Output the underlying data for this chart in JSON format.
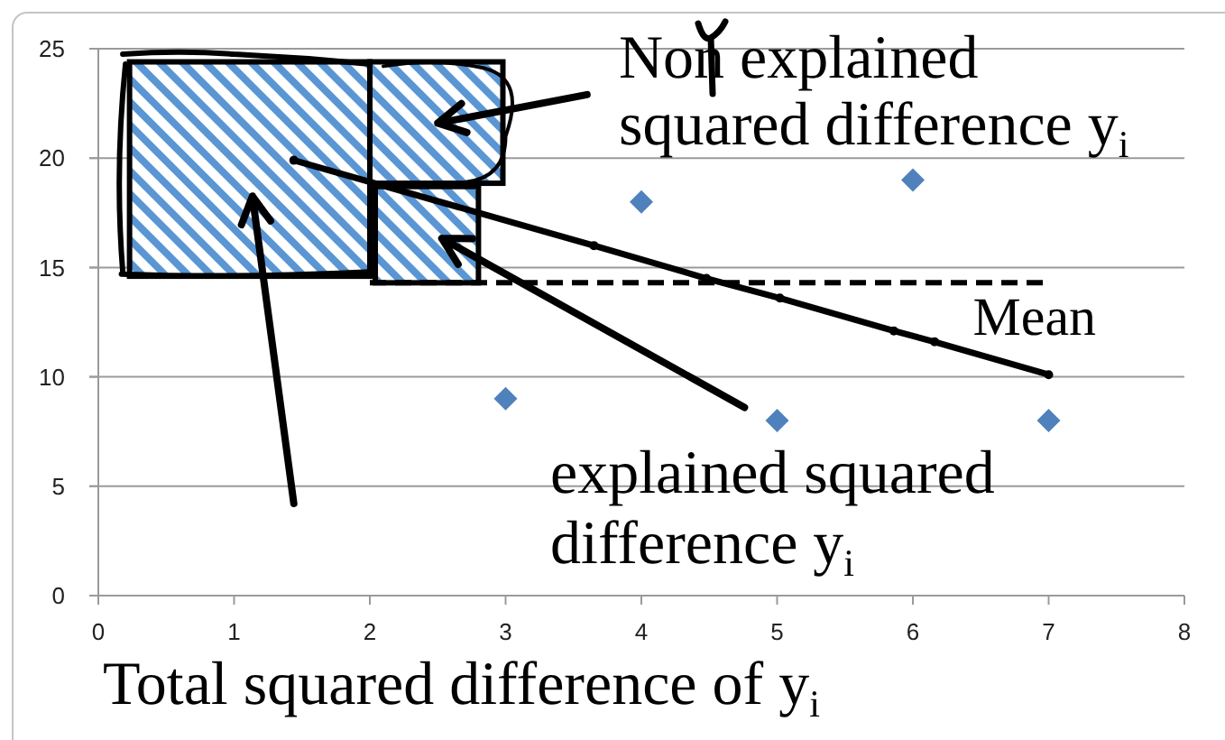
{
  "chart_data": {
    "type": "scatter",
    "series": [
      {
        "color": "#4f81bd",
        "marker": "diamond",
        "x": [
          3,
          4,
          5,
          6,
          7
        ],
        "values": [
          9,
          18,
          8,
          19,
          8
        ]
      },
      {
        "type": "line",
        "color": "#000000",
        "marker": "circle",
        "x": [
          1.44,
          3.65,
          4.48,
          5.02,
          5.86,
          6.16,
          7
        ],
        "values": [
          19.9,
          16,
          14.5,
          13.6,
          12.1,
          11.6,
          10.1
        ]
      },
      {
        "type": "line",
        "name": "Mean",
        "color": "#000000",
        "line_style": "dashed",
        "marker": "none",
        "x": [
          2,
          7
        ],
        "values": [
          14.3,
          14.3
        ]
      }
    ],
    "xlim": [
      0,
      8
    ],
    "xticks": [
      0,
      1,
      2,
      3,
      4,
      5,
      6,
      7,
      8
    ],
    "ylim": [
      0,
      25
    ],
    "yticks": [
      0,
      5,
      10,
      15,
      20,
      25
    ],
    "grid": "y",
    "annotations": [
      "Non explained squared difference y$_{i}$",
      "explained squared difference y$_{i}$",
      "Total squared difference of y$_{i}$"
    ]
  }
}
